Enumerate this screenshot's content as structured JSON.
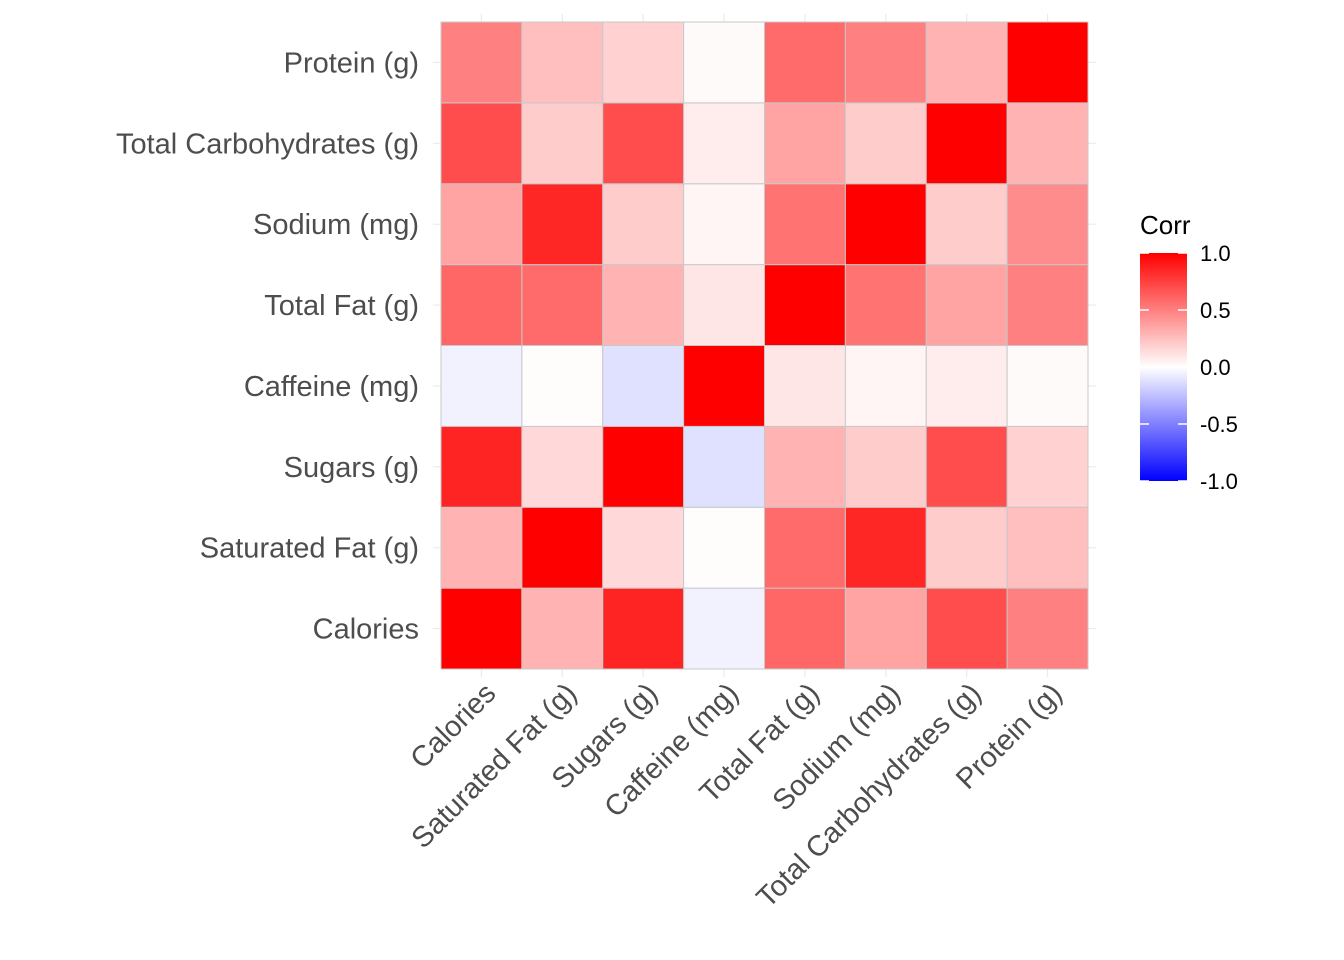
{
  "chart_data": {
    "type": "heatmap",
    "title": "",
    "xlabel": "",
    "ylabel": "",
    "x_categories": [
      "Calories",
      "Saturated Fat (g)",
      "Sugars (g)",
      "Caffeine (mg)",
      "Total Fat (g)",
      "Sodium (mg)",
      "Total Carbohydrates (g)",
      "Protein (g)"
    ],
    "y_categories": [
      "Calories",
      "Saturated Fat (g)",
      "Sugars (g)",
      "Caffeine (mg)",
      "Total Fat (g)",
      "Sodium (mg)",
      "Total Carbohydrates (g)",
      "Protein (g)"
    ],
    "values": [
      [
        1.0,
        0.3,
        0.86,
        -0.05,
        0.6,
        0.36,
        0.7,
        0.5
      ],
      [
        0.3,
        1.0,
        0.15,
        0.01,
        0.58,
        0.85,
        0.2,
        0.25
      ],
      [
        0.86,
        0.15,
        1.0,
        -0.12,
        0.3,
        0.2,
        0.7,
        0.18
      ],
      [
        -0.05,
        0.01,
        -0.12,
        1.0,
        0.1,
        0.04,
        0.07,
        0.02
      ],
      [
        0.6,
        0.58,
        0.3,
        0.1,
        1.0,
        0.55,
        0.36,
        0.5
      ],
      [
        0.36,
        0.85,
        0.2,
        0.04,
        0.55,
        1.0,
        0.2,
        0.45
      ],
      [
        0.7,
        0.2,
        0.7,
        0.07,
        0.36,
        0.2,
        1.0,
        0.3
      ],
      [
        0.5,
        0.25,
        0.18,
        0.02,
        0.58,
        0.5,
        0.3,
        1.0
      ]
    ],
    "legend": {
      "title": "Corr",
      "ticks": [
        1.0,
        0.5,
        0.0,
        -0.5,
        -1.0
      ],
      "tick_labels": [
        "1.0",
        "0.5",
        "0.0",
        "-0.5",
        "-1.0"
      ],
      "range": [
        -1.0,
        1.0
      ],
      "position": "right"
    },
    "colors": {
      "low": "#0000ff",
      "mid": "#ffffff",
      "high": "#ff0000",
      "grid": "#ebebeb",
      "tile_border": "#c8c8c8",
      "axis_text": "#4d4d4d"
    }
  }
}
